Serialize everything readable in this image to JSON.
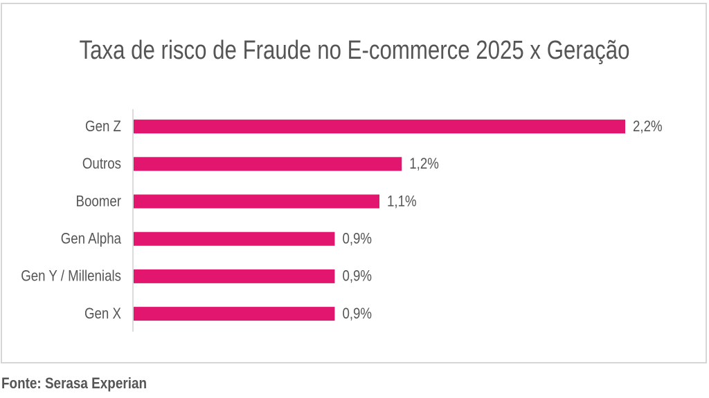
{
  "chart_data": {
    "type": "bar",
    "orientation": "horizontal",
    "title": "Taxa de risco de Fraude no E-commerce 2025 x Geração",
    "categories": [
      "Gen Z",
      "Outros",
      "Boomer",
      "Gen Alpha",
      "Gen Y / Millenials",
      "Gen X"
    ],
    "values": [
      2.2,
      1.2,
      1.1,
      0.9,
      0.9,
      0.9
    ],
    "value_labels": [
      "2,2%",
      "1,2%",
      "1,1%",
      "0,9%",
      "0,9%",
      "0,9%"
    ],
    "color": "#e2156f",
    "source": "Fonte: Serasa Experian"
  }
}
